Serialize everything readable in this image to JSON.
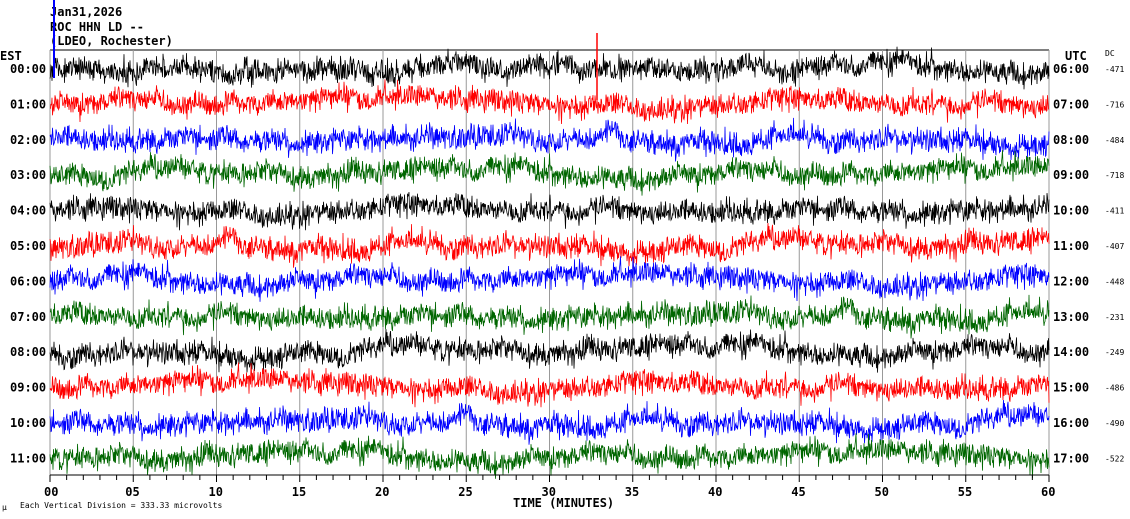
{
  "header": {
    "date": "Jan31,2026",
    "station": "ROC HHN LD --",
    "network": "(LDEO, Rochester)"
  },
  "chart_data": {
    "type": "line",
    "left_axis_title": "EST",
    "right_axis_title": "UTC",
    "dc_title": "DC",
    "xlabel": "TIME (MINUTES)",
    "xlim": [
      0,
      60
    ],
    "x_ticks": [
      "00",
      "05",
      "10",
      "15",
      "20",
      "25",
      "30",
      "35",
      "40",
      "45",
      "50",
      "55",
      "60"
    ],
    "grid": "vertical every 5 minutes",
    "scale_note": "Each Vertical Division =  333.33 microvolts",
    "scale_mark": "µ",
    "colors": [
      "#000000",
      "#ff0000",
      "#0000ff",
      "#006600"
    ],
    "rows": [
      {
        "est": "00:00",
        "utc": "06:00",
        "dc": "-471"
      },
      {
        "est": "01:00",
        "utc": "07:00",
        "dc": "-716"
      },
      {
        "est": "02:00",
        "utc": "08:00",
        "dc": "-484"
      },
      {
        "est": "03:00",
        "utc": "09:00",
        "dc": "-718"
      },
      {
        "est": "04:00",
        "utc": "10:00",
        "dc": "-411"
      },
      {
        "est": "05:00",
        "utc": "11:00",
        "dc": "-407"
      },
      {
        "est": "06:00",
        "utc": "12:00",
        "dc": "-448"
      },
      {
        "est": "07:00",
        "utc": "13:00",
        "dc": "-231"
      },
      {
        "est": "08:00",
        "utc": "14:00",
        "dc": "-249"
      },
      {
        "est": "09:00",
        "utc": "15:00",
        "dc": "-486"
      },
      {
        "est": "10:00",
        "utc": "16:00",
        "dc": "-490"
      },
      {
        "est": "11:00",
        "utc": "17:00",
        "dc": "-522"
      }
    ]
  }
}
